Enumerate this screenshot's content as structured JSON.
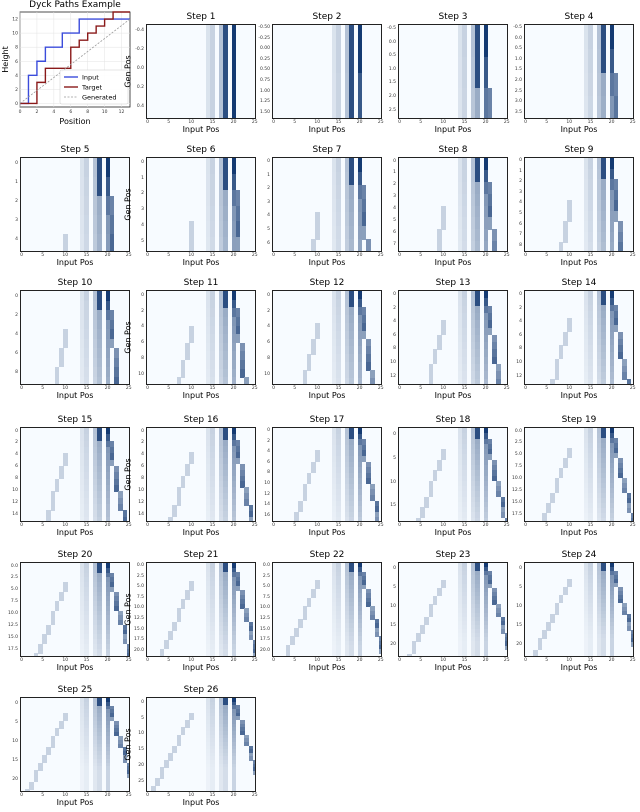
{
  "chart_data": [
    {
      "type": "line",
      "title": "Dyck Paths Example",
      "xlabel": "Position",
      "ylabel": "Height",
      "x_ticks": [
        "0",
        "2",
        "4",
        "6",
        "8",
        "10",
        "12"
      ],
      "y_ticks": [
        "0",
        "2",
        "4",
        "6",
        "8",
        "10",
        "12"
      ],
      "xlim": [
        0,
        13
      ],
      "ylim": [
        -0.5,
        13
      ],
      "legend_position": "lower-right",
      "series": [
        {
          "name": "Input",
          "color": "#3b4cdb",
          "x": [
            0,
            1,
            1,
            2,
            2,
            3,
            3,
            4,
            4,
            5,
            5,
            6,
            6,
            7,
            7,
            8,
            8,
            9,
            9,
            10,
            10,
            11,
            11,
            12,
            12,
            13
          ],
          "y": [
            0,
            0,
            4,
            4,
            6,
            6,
            8,
            8,
            8,
            8,
            10,
            10,
            10,
            10,
            12,
            12,
            12,
            12,
            12,
            12,
            12,
            12,
            12,
            12,
            12,
            12
          ]
        },
        {
          "name": "Target",
          "color": "#8a1a1a",
          "x": [
            0,
            2,
            2,
            3,
            3,
            6,
            6,
            7,
            7,
            8,
            8,
            9,
            9,
            10,
            10,
            11,
            11,
            13
          ],
          "y": [
            0,
            0,
            3,
            3,
            5,
            5,
            8,
            8,
            9,
            9,
            10,
            10,
            11,
            11,
            12,
            12,
            13,
            13
          ]
        },
        {
          "name": "Generated",
          "color": "#999999",
          "x": [
            0,
            13
          ],
          "y": [
            0,
            12
          ]
        }
      ]
    },
    {
      "type": "heatmap",
      "title": "Step 1",
      "xlabel": "Input Pos",
      "ylabel": "Gen Pos",
      "y_ticks": [
        "-0.4",
        "-0.2",
        "0.0",
        "0.2",
        "0.4"
      ]
    },
    {
      "type": "heatmap",
      "title": "Step 2",
      "xlabel": "Input Pos",
      "ylabel": "",
      "y_ticks": [
        "-0.50",
        "-0.25",
        "0.00",
        "0.25",
        "0.50",
        "0.75",
        "1.00",
        "1.25",
        "1.50"
      ]
    },
    {
      "type": "heatmap",
      "title": "Step 3",
      "xlabel": "Input Pos",
      "ylabel": "",
      "y_ticks": [
        "-0.5",
        "0.0",
        "0.5",
        "1.0",
        "1.5",
        "2.0",
        "2.5"
      ]
    },
    {
      "type": "heatmap",
      "title": "Step 4",
      "xlabel": "Input Pos",
      "ylabel": "",
      "y_ticks": [
        "-0.5",
        "0.0",
        "0.5",
        "1.0",
        "1.5",
        "2.0",
        "2.5",
        "3.0",
        "3.5"
      ]
    },
    {
      "type": "heatmap",
      "title": "Step 5",
      "xlabel": "Input Pos",
      "ylabel": "",
      "y_ticks": [
        "0",
        "1",
        "2",
        "3",
        "4"
      ]
    },
    {
      "type": "heatmap",
      "title": "Step 6",
      "xlabel": "Input Pos",
      "ylabel": "Gen Pos",
      "y_ticks": [
        "0",
        "1",
        "2",
        "3",
        "4",
        "5"
      ]
    },
    {
      "type": "heatmap",
      "title": "Step 7",
      "xlabel": "Input Pos",
      "ylabel": "",
      "y_ticks": [
        "0",
        "1",
        "2",
        "3",
        "4",
        "5",
        "6"
      ]
    },
    {
      "type": "heatmap",
      "title": "Step 8",
      "xlabel": "Input Pos",
      "ylabel": "",
      "y_ticks": [
        "0",
        "1",
        "2",
        "3",
        "4",
        "5",
        "6",
        "7"
      ]
    },
    {
      "type": "heatmap",
      "title": "Step 9",
      "xlabel": "Input Pos",
      "ylabel": "",
      "y_ticks": [
        "0",
        "1",
        "2",
        "3",
        "4",
        "5",
        "6",
        "7",
        "8"
      ]
    },
    {
      "type": "heatmap",
      "title": "Step 10",
      "xlabel": "Input Pos",
      "ylabel": "",
      "y_ticks": [
        "0",
        "2",
        "4",
        "6",
        "8"
      ]
    },
    {
      "type": "heatmap",
      "title": "Step 11",
      "xlabel": "Input Pos",
      "ylabel": "Gen Pos",
      "y_ticks": [
        "0",
        "2",
        "4",
        "6",
        "8",
        "10"
      ]
    },
    {
      "type": "heatmap",
      "title": "Step 12",
      "xlabel": "Input Pos",
      "ylabel": "",
      "y_ticks": [
        "0",
        "2",
        "4",
        "6",
        "8",
        "10"
      ]
    },
    {
      "type": "heatmap",
      "title": "Step 13",
      "xlabel": "Input Pos",
      "ylabel": "",
      "y_ticks": [
        "0",
        "2",
        "4",
        "6",
        "8",
        "10",
        "12"
      ]
    },
    {
      "type": "heatmap",
      "title": "Step 14",
      "xlabel": "Input Pos",
      "ylabel": "",
      "y_ticks": [
        "0",
        "2",
        "4",
        "6",
        "8",
        "10",
        "12"
      ]
    },
    {
      "type": "heatmap",
      "title": "Step 15",
      "xlabel": "Input Pos",
      "ylabel": "",
      "y_ticks": [
        "0",
        "2",
        "4",
        "6",
        "8",
        "10",
        "12",
        "14"
      ]
    },
    {
      "type": "heatmap",
      "title": "Step 16",
      "xlabel": "Input Pos",
      "ylabel": "Gen Pos",
      "y_ticks": [
        "0",
        "2",
        "4",
        "6",
        "8",
        "10",
        "12",
        "14"
      ]
    },
    {
      "type": "heatmap",
      "title": "Step 17",
      "xlabel": "Input Pos",
      "ylabel": "",
      "y_ticks": [
        "0",
        "2",
        "4",
        "6",
        "8",
        "10",
        "12",
        "14",
        "16"
      ]
    },
    {
      "type": "heatmap",
      "title": "Step 18",
      "xlabel": "Input Pos",
      "ylabel": "",
      "y_ticks": [
        "0",
        "5",
        "10",
        "15"
      ]
    },
    {
      "type": "heatmap",
      "title": "Step 19",
      "xlabel": "Input Pos",
      "ylabel": "",
      "y_ticks": [
        "0.0",
        "2.5",
        "5.0",
        "7.5",
        "10.0",
        "12.5",
        "15.0",
        "17.5"
      ]
    },
    {
      "type": "heatmap",
      "title": "Step 20",
      "xlabel": "Input Pos",
      "ylabel": "",
      "y_ticks": [
        "0.0",
        "2.5",
        "5.0",
        "7.5",
        "10.0",
        "12.5",
        "15.0",
        "17.5"
      ]
    },
    {
      "type": "heatmap",
      "title": "Step 21",
      "xlabel": "Input Pos",
      "ylabel": "Gen Pos",
      "y_ticks": [
        "0.0",
        "2.5",
        "5.0",
        "7.5",
        "10.0",
        "12.5",
        "15.0",
        "17.5",
        "20.0"
      ]
    },
    {
      "type": "heatmap",
      "title": "Step 22",
      "xlabel": "Input Pos",
      "ylabel": "",
      "y_ticks": [
        "0.0",
        "2.5",
        "5.0",
        "7.5",
        "10.0",
        "12.5",
        "15.0",
        "17.5",
        "20.0"
      ]
    },
    {
      "type": "heatmap",
      "title": "Step 23",
      "xlabel": "Input Pos",
      "ylabel": "",
      "y_ticks": [
        "0",
        "5",
        "10",
        "15",
        "20"
      ]
    },
    {
      "type": "heatmap",
      "title": "Step 24",
      "xlabel": "Input Pos",
      "ylabel": "",
      "y_ticks": [
        "0",
        "5",
        "10",
        "15",
        "20"
      ]
    },
    {
      "type": "heatmap",
      "title": "Step 25",
      "xlabel": "Input Pos",
      "ylabel": "",
      "y_ticks": [
        "0",
        "5",
        "10",
        "15",
        "20"
      ]
    },
    {
      "type": "heatmap",
      "title": "Step 26",
      "xlabel": "Input Pos",
      "ylabel": "Gen Pos",
      "y_ticks": [
        "0",
        "5",
        "10",
        "15",
        "20",
        "25"
      ]
    }
  ],
  "heatmap_x_ticks": [
    "0",
    "5",
    "10",
    "15",
    "20",
    "25"
  ],
  "colors": {
    "cmap_low": "#f7fbff",
    "cmap_high": "#08306b"
  }
}
